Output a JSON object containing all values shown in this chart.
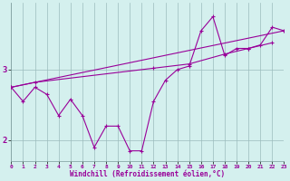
{
  "x": [
    0,
    1,
    2,
    3,
    4,
    5,
    6,
    7,
    8,
    9,
    10,
    11,
    12,
    13,
    14,
    15,
    16,
    17,
    18,
    19,
    20,
    21,
    22,
    23
  ],
  "line1": [
    2.75,
    2.55,
    2.75,
    2.65,
    2.35,
    2.58,
    2.35,
    1.9,
    2.2,
    2.2,
    1.85,
    1.85,
    2.55,
    2.85,
    3.0,
    3.05,
    3.55,
    3.75,
    3.2,
    3.3,
    3.3,
    3.35,
    3.6,
    3.55
  ],
  "line2_x": [
    0,
    2,
    12,
    15,
    18,
    20,
    22
  ],
  "line2_y": [
    2.75,
    2.82,
    3.02,
    3.08,
    3.22,
    3.3,
    3.38
  ],
  "line3_x": [
    0,
    23
  ],
  "line3_y": [
    2.75,
    3.55
  ],
  "background": "#d4f0ee",
  "line_color": "#990099",
  "grid_color": "#9bbcbc",
  "xlabel": "Windchill (Refroidissement éolien,°C)",
  "yticks": [
    2,
    3
  ],
  "xticks": [
    0,
    1,
    2,
    3,
    4,
    5,
    6,
    7,
    8,
    9,
    10,
    11,
    12,
    13,
    14,
    15,
    16,
    17,
    18,
    19,
    20,
    21,
    22,
    23
  ],
  "ylim": [
    1.7,
    3.95
  ],
  "xlim": [
    0,
    23
  ]
}
